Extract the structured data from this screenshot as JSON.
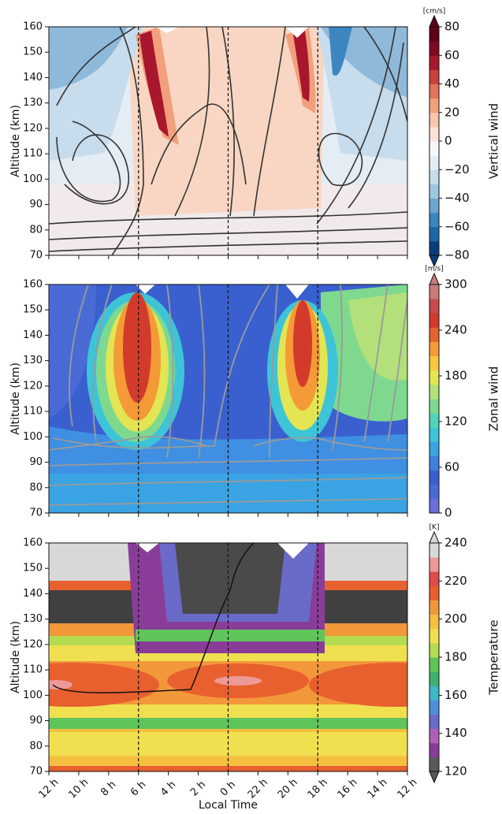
{
  "chart_data": [
    {
      "type": "contour",
      "ylabel": "Altitude (km)",
      "ylim": [
        70,
        160
      ],
      "yticks": [
        70,
        80,
        90,
        100,
        110,
        120,
        130,
        140,
        150,
        160
      ],
      "colorbar": {
        "label": "Vertical wind",
        "unit": "[cm/s]",
        "lim": [
          -80,
          80
        ],
        "extend": "both",
        "ticks": [
          {
            "value": -80,
            "label": "−80"
          },
          {
            "value": -60,
            "label": "−60"
          },
          {
            "value": -40,
            "label": "−40"
          },
          {
            "value": -20,
            "label": "−20"
          },
          0,
          20,
          40,
          60,
          80
        ],
        "colors": [
          "#0b3d7a",
          "#1f66a8",
          "#3d86bf",
          "#6aa6d0",
          "#9dc6e1",
          "#c7dcec",
          "#e6eef5",
          "#f7f7f7",
          "#fbe4d6",
          "#f8c6ab",
          "#f2a07c",
          "#e2735c",
          "#c9413f",
          "#a8172e",
          "#7d0b22",
          "#5e0318"
        ]
      }
    },
    {
      "type": "contour",
      "ylabel": "Altitude (km)",
      "ylim": [
        70,
        160
      ],
      "yticks": [
        70,
        80,
        90,
        100,
        110,
        120,
        130,
        140,
        150,
        160
      ],
      "colorbar": {
        "label": "Zonal wind",
        "unit": "[m/s]",
        "lim": [
          0,
          300
        ],
        "extend": "max",
        "ticks": [
          0,
          60,
          120,
          180,
          240,
          300
        ],
        "colors": [
          "#6a6fd8",
          "#4a6ad6",
          "#3a60cf",
          "#3f7fe0",
          "#3aa3e3",
          "#3ec4d7",
          "#52d4b8",
          "#7ed98f",
          "#b3e07a",
          "#e3e552",
          "#f7c83f",
          "#f49a36",
          "#e5632d",
          "#d23b2b",
          "#c84b4b",
          "#c97a7a"
        ]
      }
    },
    {
      "type": "contour",
      "ylabel": "Altitude (km)",
      "ylim": [
        70,
        160
      ],
      "yticks": [
        70,
        80,
        90,
        100,
        110,
        120,
        130,
        140,
        150,
        160
      ],
      "xlabel": "Local Time",
      "categories": [
        "12 h",
        "10 h",
        "8 h",
        "6 h",
        "4 h",
        "2 h",
        "0 h",
        "22 h",
        "20 h",
        "18 h",
        "16 h",
        "14 h",
        "12 h"
      ],
      "colorbar": {
        "label": "Temperature",
        "unit": "[K]",
        "lim": [
          120,
          240
        ],
        "extend": "both",
        "ticks": [
          120,
          140,
          160,
          180,
          200,
          220,
          240
        ],
        "colors": [
          "#5a5a5a",
          "#8a3d98",
          "#b05fb8",
          "#6a6ac8",
          "#4f8fd8",
          "#3fb8c8",
          "#40b070",
          "#5fc55a",
          "#b5dc50",
          "#f0e050",
          "#f5c040",
          "#f3983a",
          "#e8602e",
          "#e04a4a",
          "#ee9898",
          "#d8d8d8"
        ]
      }
    }
  ]
}
